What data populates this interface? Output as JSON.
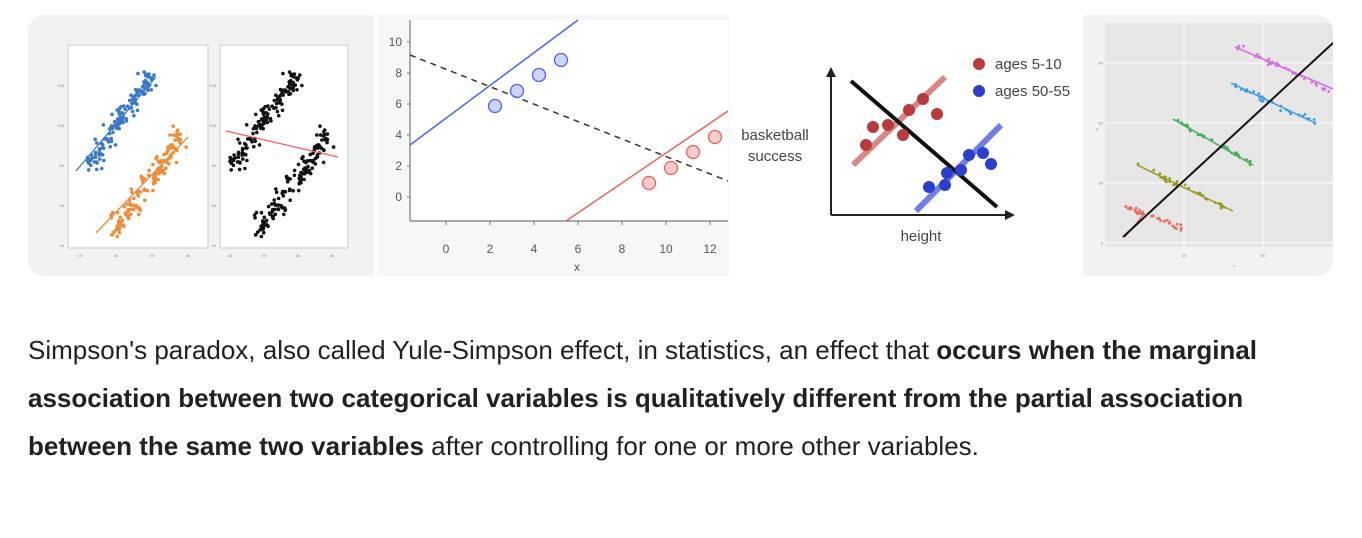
{
  "colors": {
    "blue": "#3a78c9",
    "orange": "#ee8c3a",
    "black": "#111111",
    "red_line": "#ee6060",
    "blue_line": "#4a64ee",
    "dark_red": "#b83a3a",
    "dark_blue": "#2a3fcf",
    "magenta": "#d36ee6",
    "sky": "#3b9be0",
    "green": "#44b05a",
    "olive": "#9a9a1e",
    "salmon": "#ee6a5a"
  },
  "images": [
    {
      "description_name": "scatter-plots-image",
      "left_axis": {
        "y_ticks": [
          "120",
          "100",
          "80",
          "60",
          "40"
        ],
        "x_ticks": [
          "15",
          "20",
          "25",
          "30"
        ]
      },
      "right_axis": {
        "y_ticks": [
          "120",
          "100",
          "80",
          "60",
          "40"
        ],
        "x_ticks": [
          "15",
          "20",
          "25",
          "30"
        ]
      }
    },
    {
      "description_name": "regression-lines-image",
      "y_ticks": [
        "10",
        "8",
        "6",
        "4",
        "2",
        "0"
      ],
      "x_ticks": [
        "0",
        "2",
        "4",
        "6",
        "8",
        "10",
        "12"
      ],
      "xlabel": "x"
    },
    {
      "description_name": "basketball-height-image",
      "legend": [
        "ages 5-10",
        "ages 50-55"
      ],
      "ylabel_line1": "basketball",
      "ylabel_line2": "success",
      "xlabel": "height"
    },
    {
      "description_name": "grouped-scatter-image",
      "y_ticks": [
        "90",
        "60",
        "30",
        "0"
      ],
      "x_ticks": [
        "40",
        "60"
      ],
      "xlabel": "x",
      "ylabel": "y"
    }
  ],
  "snippet": {
    "part1": "Simpson's paradox, also called Yule-Simpson effect, in statistics, an effect that ",
    "bold": "occurs when the marginal association between two categorical variables is qualitatively different from the partial association between the same two variables",
    "part2": " after controlling for one or more other variables."
  }
}
